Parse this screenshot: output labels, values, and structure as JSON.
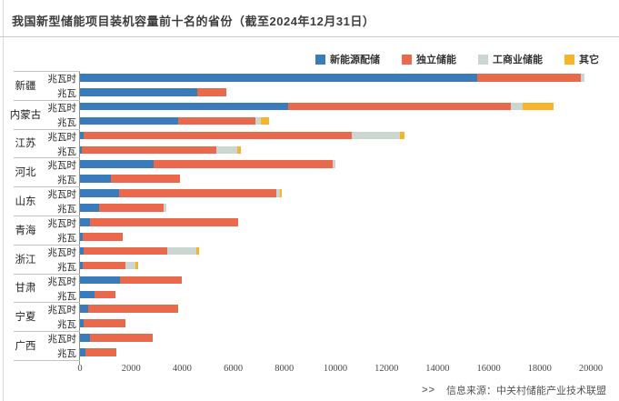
{
  "title": "我国新型储能项目装机容量前十名的省份（截至2024年12月31日）",
  "legend": [
    {
      "label": "新能源配储",
      "color": "#3A7CBA"
    },
    {
      "label": "独立储能",
      "color": "#E8694B"
    },
    {
      "label": "工商业储能",
      "color": "#CBD6D0"
    },
    {
      "label": "其它",
      "color": "#F6B42A"
    }
  ],
  "source": {
    "marker": ">>",
    "text": "信息来源：中关村储能产业技术联盟"
  },
  "chart_data": {
    "type": "bar",
    "orientation": "horizontal",
    "stacked": true,
    "grid": false,
    "legend_position": "top-right",
    "series_names": [
      "新能源配储",
      "独立储能",
      "工商业储能",
      "其它"
    ],
    "series_colors": [
      "#3A7CBA",
      "#E8694B",
      "#CBD6D0",
      "#F6B42A"
    ],
    "unit_labels": {
      "mwh": "兆瓦时",
      "mw": "兆瓦"
    },
    "x_ticks": [
      0,
      2000,
      4000,
      6000,
      8000,
      10000,
      12000,
      14000,
      16000,
      18000,
      20000
    ],
    "xlim": [
      0,
      21100
    ],
    "provinces": [
      {
        "name": "新疆",
        "mwh": [
          15550,
          4070,
          140,
          0
        ],
        "mw": [
          4590,
          1130,
          0,
          0
        ]
      },
      {
        "name": "内蒙古",
        "mwh": [
          8150,
          8720,
          460,
          1210
        ],
        "mw": [
          3830,
          3040,
          210,
          320
        ]
      },
      {
        "name": "江苏",
        "mwh": [
          140,
          10500,
          1890,
          180
        ],
        "mw": [
          70,
          5270,
          820,
          140
        ]
      },
      {
        "name": "河北",
        "mwh": [
          2870,
          7020,
          110,
          0
        ],
        "mw": [
          1200,
          2710,
          0,
          0
        ]
      },
      {
        "name": "山东",
        "mwh": [
          1530,
          6170,
          120,
          80
        ],
        "mw": [
          740,
          2540,
          110,
          0
        ]
      },
      {
        "name": "青海",
        "mwh": [
          390,
          5800,
          0,
          0
        ],
        "mw": [
          110,
          1560,
          0,
          0
        ]
      },
      {
        "name": "浙江",
        "mwh": [
          140,
          3280,
          1140,
          110
        ],
        "mw": [
          110,
          1670,
          390,
          110
        ]
      },
      {
        "name": "甘肃",
        "mwh": [
          1560,
          2410,
          0,
          0
        ],
        "mw": [
          570,
          820,
          0,
          0
        ]
      },
      {
        "name": "宁夏",
        "mwh": [
          320,
          3520,
          0,
          0
        ],
        "mw": [
          140,
          1640,
          0,
          0
        ]
      },
      {
        "name": "广西",
        "mwh": [
          390,
          2460,
          0,
          0
        ],
        "mw": [
          210,
          1210,
          0,
          0
        ]
      }
    ]
  }
}
